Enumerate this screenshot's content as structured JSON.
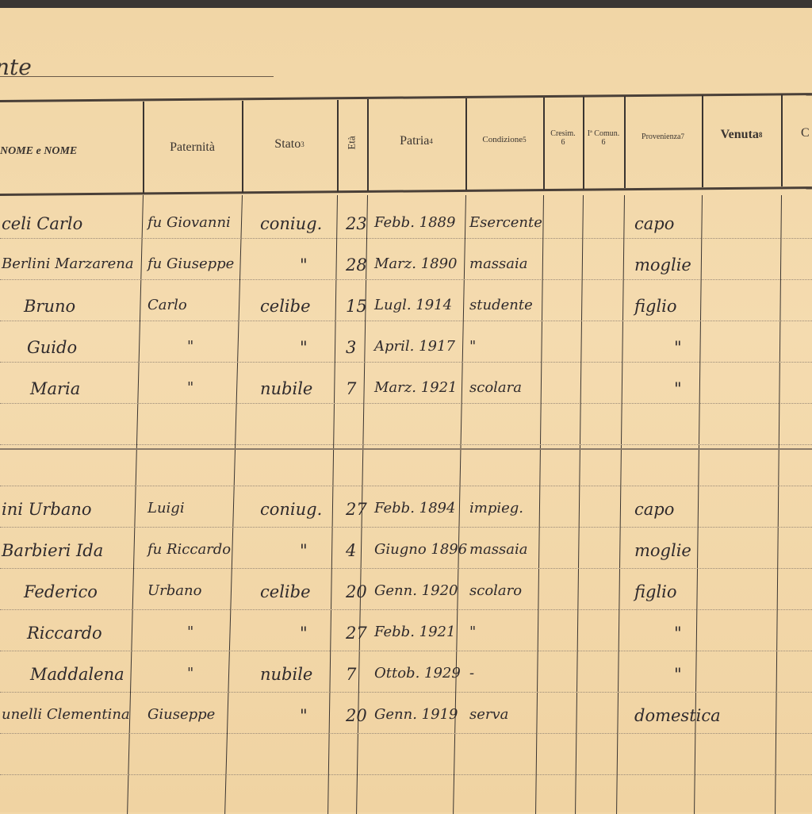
{
  "heading": "nte",
  "columns": [
    {
      "label": "NOME e NOME"
    },
    {
      "label": "Paternità"
    },
    {
      "label": "Stato",
      "note": "3"
    },
    {
      "label": "Età"
    },
    {
      "label": "Patria",
      "note": "4"
    },
    {
      "label": "Condizione",
      "note": "5"
    },
    {
      "label": "Cresim.",
      "note": "6"
    },
    {
      "label": "Iª Comun.",
      "note": "6"
    },
    {
      "label": "Provenienza",
      "note": "7"
    },
    {
      "label": "Venuta",
      "note": "8"
    },
    {
      "label": "C"
    }
  ],
  "families": [
    {
      "rows": [
        {
          "name": "celi Carlo",
          "paternita": "fu Giovanni",
          "stato": "coniug.",
          "eta": "23",
          "patria": "Febb. 1889",
          "condizione": "Esercente",
          "provenienza": "capo"
        },
        {
          "name": "Berlini Marzarena",
          "paternita": "fu Giuseppe",
          "stato": "\"",
          "eta": "28",
          "patria": "Marz. 1890",
          "condizione": "massaia",
          "provenienza": "moglie"
        },
        {
          "name": "Bruno",
          "paternita": "Carlo",
          "stato": "celibe",
          "eta": "15",
          "patria": "Lugl. 1914",
          "condizione": "studente",
          "provenienza": "figlio"
        },
        {
          "name": "Guido",
          "paternita": "\"",
          "stato": "\"",
          "eta": "3",
          "patria": "April. 1917",
          "condizione": "\"",
          "provenienza": "\""
        },
        {
          "name": "Maria",
          "paternita": "\"",
          "stato": "nubile",
          "eta": "7",
          "patria": "Marz. 1921",
          "condizione": "scolara",
          "provenienza": "\""
        }
      ]
    },
    {
      "rows": [
        {
          "name": "ini Urbano",
          "paternita": "Luigi",
          "stato": "coniug.",
          "eta": "27",
          "patria": "Febb. 1894",
          "condizione": "impieg.",
          "provenienza": "capo"
        },
        {
          "name": "Barbieri Ida",
          "paternita": "fu Riccardo",
          "stato": "\"",
          "eta": "4",
          "patria": "Giugno 1896",
          "condizione": "massaia",
          "provenienza": "moglie"
        },
        {
          "name": "Federico",
          "paternita": "Urbano",
          "stato": "celibe",
          "eta": "20",
          "patria": "Genn. 1920",
          "condizione": "scolaro",
          "provenienza": "figlio"
        },
        {
          "name": "Riccardo",
          "paternita": "\"",
          "stato": "\"",
          "eta": "27",
          "patria": "Febb. 1921",
          "condizione": "\"",
          "provenienza": "\""
        },
        {
          "name": "Maddalena",
          "paternita": "\"",
          "stato": "nubile",
          "eta": "7",
          "patria": "Ottob. 1929",
          "condizione": "-",
          "provenienza": "\""
        },
        {
          "name": "unelli Clementina",
          "paternita": "Giuseppe",
          "stato": "\"",
          "eta": "20",
          "patria": "Genn. 1919",
          "condizione": "serva",
          "provenienza": "domestica"
        }
      ]
    }
  ]
}
